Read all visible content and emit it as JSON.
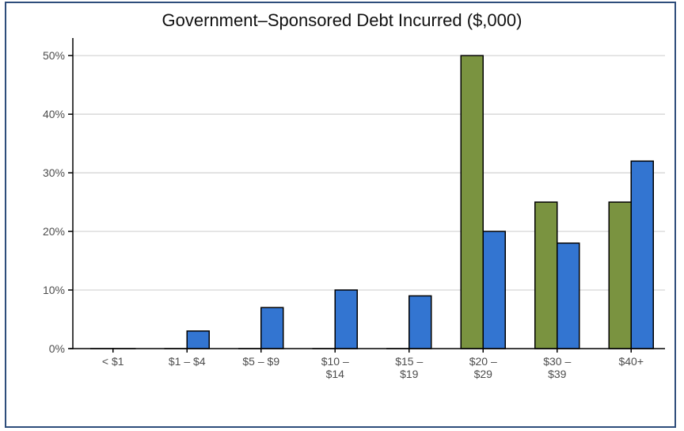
{
  "chart_data": {
    "type": "bar",
    "title": "Government–Sponsored Debt Incurred ($,000)",
    "xlabel": "",
    "ylabel": "",
    "categories": [
      [
        "< $1"
      ],
      [
        "$1 – $4"
      ],
      [
        "$5 – $9"
      ],
      [
        "$10 –",
        "$14"
      ],
      [
        "$15 –",
        "$19"
      ],
      [
        "$20 –",
        "$29"
      ],
      [
        "$30 –",
        "$39"
      ],
      [
        "$40+"
      ]
    ],
    "series": [
      {
        "color": "#7a9340",
        "values": [
          0,
          0,
          0,
          0,
          0,
          50,
          25,
          25
        ]
      },
      {
        "color": "#3375d1",
        "values": [
          0,
          3,
          7,
          10,
          9,
          20,
          18,
          32
        ]
      }
    ],
    "ylim": [
      0,
      53
    ],
    "yticks": [
      0,
      10,
      20,
      30,
      40,
      50
    ],
    "ytick_labels": [
      "0%",
      "10%",
      "20%",
      "30%",
      "40%",
      "50%"
    ],
    "grid": true
  }
}
